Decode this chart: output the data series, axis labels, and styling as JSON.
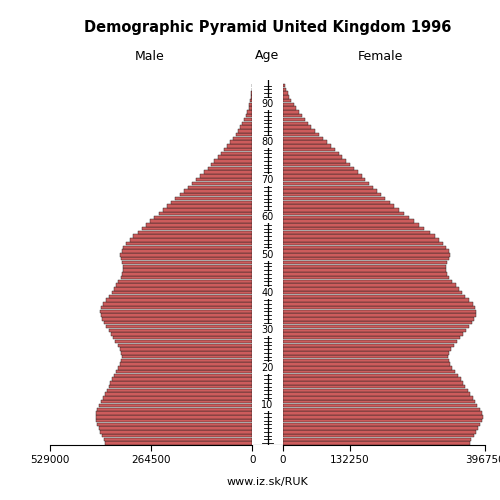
{
  "title": "Demographic Pyramid United Kingdom 1996",
  "male_label": "Male",
  "female_label": "Female",
  "age_label": "Age",
  "website": "www.iz.sk/RUK",
  "male_xlim": 529000,
  "female_xlim": 396750,
  "bar_color": "#cd5c5c",
  "edge_color": "#1a1a1a",
  "ages": [
    0,
    1,
    2,
    3,
    4,
    5,
    6,
    7,
    8,
    9,
    10,
    11,
    12,
    13,
    14,
    15,
    16,
    17,
    18,
    19,
    20,
    21,
    22,
    23,
    24,
    25,
    26,
    27,
    28,
    29,
    30,
    31,
    32,
    33,
    34,
    35,
    36,
    37,
    38,
    39,
    40,
    41,
    42,
    43,
    44,
    45,
    46,
    47,
    48,
    49,
    50,
    51,
    52,
    53,
    54,
    55,
    56,
    57,
    58,
    59,
    60,
    61,
    62,
    63,
    64,
    65,
    66,
    67,
    68,
    69,
    70,
    71,
    72,
    73,
    74,
    75,
    76,
    77,
    78,
    79,
    80,
    81,
    82,
    83,
    84,
    85,
    86,
    87,
    88,
    89,
    90,
    91,
    92,
    93,
    94,
    95
  ],
  "male": [
    385000,
    388000,
    393000,
    397000,
    401000,
    405000,
    408000,
    410000,
    408000,
    405000,
    400000,
    396000,
    391000,
    386000,
    381000,
    376000,
    372000,
    368000,
    362000,
    356000,
    350000,
    346000,
    343000,
    342000,
    343000,
    347000,
    352000,
    358000,
    364000,
    370000,
    376000,
    382000,
    388000,
    393000,
    396000,
    397000,
    395000,
    390000,
    383000,
    375000,
    368000,
    362000,
    356000,
    350000,
    344000,
    340000,
    338000,
    338000,
    340000,
    343000,
    345000,
    342000,
    337000,
    330000,
    321000,
    311000,
    300000,
    289000,
    278000,
    267000,
    256000,
    245000,
    234000,
    223000,
    212000,
    201000,
    190000,
    179000,
    168000,
    157000,
    147000,
    137000,
    127000,
    117000,
    108000,
    99000,
    90000,
    82000,
    74000,
    66000,
    58000,
    50000,
    43000,
    37000,
    31000,
    26000,
    21000,
    17000,
    13000,
    10000,
    7500,
    5500,
    4000,
    2800,
    1900,
    1200
  ],
  "female": [
    367000,
    370000,
    375000,
    379000,
    383000,
    387000,
    390000,
    392000,
    390000,
    387000,
    382000,
    378000,
    373000,
    368000,
    363000,
    358000,
    354000,
    350000,
    344000,
    338000,
    333000,
    329000,
    326000,
    325000,
    326000,
    330000,
    335000,
    341000,
    347000,
    353000,
    359000,
    365000,
    371000,
    376000,
    379000,
    380000,
    378000,
    373000,
    366000,
    358000,
    351000,
    345000,
    339000,
    333000,
    327000,
    323000,
    321000,
    321000,
    323000,
    326000,
    328000,
    326000,
    321000,
    315000,
    307000,
    298000,
    288000,
    278000,
    268000,
    258000,
    248000,
    238000,
    228000,
    219000,
    210000,
    201000,
    193000,
    185000,
    177000,
    169000,
    162000,
    155000,
    148000,
    140000,
    132000,
    124000,
    117000,
    110000,
    103000,
    95000,
    87000,
    79000,
    71000,
    63000,
    56000,
    50000,
    44000,
    38000,
    32000,
    27000,
    22000,
    17000,
    13000,
    9500,
    6800,
    4500
  ],
  "age_ticks": [
    10,
    20,
    30,
    40,
    50,
    60,
    70,
    80,
    90
  ]
}
